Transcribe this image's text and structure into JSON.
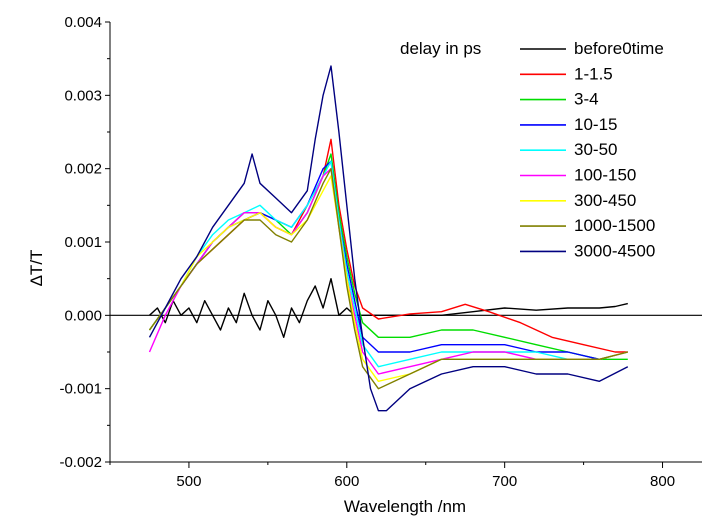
{
  "chart_data": {
    "type": "line",
    "xlabel": "Wavelength /nm",
    "ylabel": "ΔT/T",
    "xlim": [
      450,
      825
    ],
    "ylim": [
      -0.002,
      0.004
    ],
    "x_ticks": [
      500,
      600,
      700,
      800
    ],
    "x_tick_labels": [
      "500",
      "600",
      "700",
      "800"
    ],
    "y_ticks": [
      -0.002,
      -0.001,
      0.0,
      0.001,
      0.002,
      0.003,
      0.004
    ],
    "y_tick_labels": [
      "-0.002",
      "-0.001",
      "0.000",
      "0.001",
      "0.002",
      "0.003",
      "0.004"
    ],
    "grid": false,
    "zero_line": true,
    "legend_title": "delay in ps",
    "legend_position": "top-right",
    "series": [
      {
        "name": "before0time",
        "color": "#000000",
        "points": [
          [
            475,
            0.0
          ],
          [
            480,
            0.0001
          ],
          [
            485,
            -0.0001
          ],
          [
            490,
            0.0002
          ],
          [
            495,
            0.0
          ],
          [
            500,
            0.0001
          ],
          [
            505,
            -0.0001
          ],
          [
            510,
            0.0002
          ],
          [
            515,
            0.0
          ],
          [
            520,
            -0.0002
          ],
          [
            525,
            0.0001
          ],
          [
            530,
            -0.0001
          ],
          [
            535,
            0.0003
          ],
          [
            540,
            0.0
          ],
          [
            545,
            -0.0002
          ],
          [
            550,
            0.0002
          ],
          [
            555,
            0.0
          ],
          [
            560,
            -0.0003
          ],
          [
            565,
            0.0001
          ],
          [
            570,
            -0.0001
          ],
          [
            575,
            0.0002
          ],
          [
            580,
            0.0004
          ],
          [
            585,
            0.0001
          ],
          [
            590,
            0.0005
          ],
          [
            595,
            0.0
          ],
          [
            600,
            0.0001
          ],
          [
            605,
            0.0
          ],
          [
            610,
            0.0
          ],
          [
            620,
            0.0
          ],
          [
            640,
            0.0
          ],
          [
            660,
            0.0
          ],
          [
            680,
            5e-05
          ],
          [
            700,
            0.0001
          ],
          [
            720,
            7e-05
          ],
          [
            740,
            0.0001
          ],
          [
            760,
            0.0001
          ],
          [
            770,
            0.00012
          ],
          [
            778,
            0.00016
          ]
        ]
      },
      {
        "name": "1-1.5",
        "color": "#ff0000",
        "points": [
          [
            475,
            -0.0002
          ],
          [
            485,
            0.0001
          ],
          [
            495,
            0.0004
          ],
          [
            505,
            0.0007
          ],
          [
            515,
            0.0009
          ],
          [
            525,
            0.0011
          ],
          [
            535,
            0.0013
          ],
          [
            545,
            0.0014
          ],
          [
            555,
            0.0012
          ],
          [
            565,
            0.0011
          ],
          [
            575,
            0.0015
          ],
          [
            585,
            0.0019
          ],
          [
            590,
            0.0024
          ],
          [
            595,
            0.0015
          ],
          [
            600,
            0.0009
          ],
          [
            605,
            0.0004
          ],
          [
            610,
            0.0001
          ],
          [
            620,
            -5e-05
          ],
          [
            640,
            2e-05
          ],
          [
            660,
            5e-05
          ],
          [
            675,
            0.00015
          ],
          [
            690,
            5e-05
          ],
          [
            710,
            -0.0001
          ],
          [
            730,
            -0.0003
          ],
          [
            750,
            -0.0004
          ],
          [
            770,
            -0.0005
          ],
          [
            778,
            -0.0005
          ]
        ]
      },
      {
        "name": "3-4",
        "color": "#00dd00",
        "points": [
          [
            475,
            -0.0002
          ],
          [
            485,
            0.0001
          ],
          [
            495,
            0.0004
          ],
          [
            505,
            0.0007
          ],
          [
            515,
            0.001
          ],
          [
            525,
            0.0012
          ],
          [
            535,
            0.0014
          ],
          [
            545,
            0.0014
          ],
          [
            555,
            0.0013
          ],
          [
            565,
            0.0011
          ],
          [
            575,
            0.0014
          ],
          [
            585,
            0.0019
          ],
          [
            590,
            0.0022
          ],
          [
            595,
            0.0014
          ],
          [
            600,
            0.0008
          ],
          [
            605,
            0.0003
          ],
          [
            610,
            -0.0001
          ],
          [
            620,
            -0.0003
          ],
          [
            640,
            -0.0003
          ],
          [
            660,
            -0.0002
          ],
          [
            680,
            -0.0002
          ],
          [
            700,
            -0.0003
          ],
          [
            720,
            -0.0004
          ],
          [
            740,
            -0.0005
          ],
          [
            760,
            -0.0006
          ],
          [
            778,
            -0.0006
          ]
        ]
      },
      {
        "name": "10-15",
        "color": "#0000ff",
        "points": [
          [
            475,
            -0.0002
          ],
          [
            485,
            0.0001
          ],
          [
            495,
            0.0004
          ],
          [
            505,
            0.0007
          ],
          [
            515,
            0.001
          ],
          [
            525,
            0.0012
          ],
          [
            535,
            0.0013
          ],
          [
            545,
            0.0014
          ],
          [
            555,
            0.0013
          ],
          [
            565,
            0.0012
          ],
          [
            575,
            0.0015
          ],
          [
            585,
            0.002
          ],
          [
            590,
            0.0021
          ],
          [
            595,
            0.0013
          ],
          [
            600,
            0.0007
          ],
          [
            605,
            0.0002
          ],
          [
            610,
            -0.0003
          ],
          [
            620,
            -0.0005
          ],
          [
            640,
            -0.0005
          ],
          [
            660,
            -0.0004
          ],
          [
            680,
            -0.0004
          ],
          [
            700,
            -0.0004
          ],
          [
            720,
            -0.0005
          ],
          [
            740,
            -0.0005
          ],
          [
            760,
            -0.0006
          ],
          [
            778,
            -0.0005
          ]
        ]
      },
      {
        "name": "30-50",
        "color": "#00ffff",
        "points": [
          [
            475,
            -0.0002
          ],
          [
            485,
            0.0001
          ],
          [
            495,
            0.0004
          ],
          [
            505,
            0.0008
          ],
          [
            515,
            0.0011
          ],
          [
            525,
            0.0013
          ],
          [
            535,
            0.0014
          ],
          [
            545,
            0.0015
          ],
          [
            555,
            0.0013
          ],
          [
            565,
            0.0012
          ],
          [
            575,
            0.0015
          ],
          [
            585,
            0.0019
          ],
          [
            590,
            0.0021
          ],
          [
            595,
            0.0013
          ],
          [
            600,
            0.0006
          ],
          [
            605,
            0.0001
          ],
          [
            610,
            -0.0004
          ],
          [
            620,
            -0.0007
          ],
          [
            640,
            -0.0006
          ],
          [
            660,
            -0.0005
          ],
          [
            680,
            -0.0005
          ],
          [
            700,
            -0.0005
          ],
          [
            720,
            -0.0005
          ],
          [
            740,
            -0.0006
          ],
          [
            760,
            -0.0006
          ],
          [
            778,
            -0.0005
          ]
        ]
      },
      {
        "name": "100-150",
        "color": "#ff00ff",
        "points": [
          [
            475,
            -0.0005
          ],
          [
            485,
            0.0
          ],
          [
            495,
            0.0004
          ],
          [
            505,
            0.0007
          ],
          [
            515,
            0.001
          ],
          [
            525,
            0.0012
          ],
          [
            535,
            0.0014
          ],
          [
            545,
            0.0014
          ],
          [
            555,
            0.0012
          ],
          [
            565,
            0.0011
          ],
          [
            575,
            0.0014
          ],
          [
            585,
            0.0019
          ],
          [
            590,
            0.002
          ],
          [
            595,
            0.0012
          ],
          [
            600,
            0.0005
          ],
          [
            605,
            0.0
          ],
          [
            610,
            -0.0005
          ],
          [
            620,
            -0.0008
          ],
          [
            640,
            -0.0007
          ],
          [
            660,
            -0.0006
          ],
          [
            680,
            -0.0005
          ],
          [
            700,
            -0.0005
          ],
          [
            720,
            -0.0006
          ],
          [
            740,
            -0.0006
          ],
          [
            760,
            -0.0006
          ],
          [
            778,
            -0.0005
          ]
        ]
      },
      {
        "name": "300-450",
        "color": "#ffff00",
        "points": [
          [
            475,
            -0.0002
          ],
          [
            485,
            0.0001
          ],
          [
            495,
            0.0004
          ],
          [
            505,
            0.0008
          ],
          [
            515,
            0.001
          ],
          [
            525,
            0.0012
          ],
          [
            535,
            0.0013
          ],
          [
            545,
            0.0014
          ],
          [
            555,
            0.0012
          ],
          [
            565,
            0.0011
          ],
          [
            575,
            0.0013
          ],
          [
            585,
            0.0017
          ],
          [
            590,
            0.0019
          ],
          [
            595,
            0.0012
          ],
          [
            600,
            0.0005
          ],
          [
            605,
            -0.0001
          ],
          [
            610,
            -0.0006
          ],
          [
            620,
            -0.0009
          ],
          [
            640,
            -0.0008
          ],
          [
            660,
            -0.0006
          ],
          [
            680,
            -0.0006
          ],
          [
            700,
            -0.0006
          ],
          [
            720,
            -0.0006
          ],
          [
            740,
            -0.0006
          ],
          [
            760,
            -0.0006
          ],
          [
            778,
            -0.0005
          ]
        ]
      },
      {
        "name": "1000-1500",
        "color": "#808000",
        "points": [
          [
            475,
            -0.0002
          ],
          [
            485,
            0.0001
          ],
          [
            495,
            0.0004
          ],
          [
            505,
            0.0007
          ],
          [
            515,
            0.0009
          ],
          [
            525,
            0.0011
          ],
          [
            535,
            0.0013
          ],
          [
            545,
            0.0013
          ],
          [
            555,
            0.0011
          ],
          [
            565,
            0.001
          ],
          [
            575,
            0.0013
          ],
          [
            585,
            0.0018
          ],
          [
            590,
            0.002
          ],
          [
            595,
            0.0012
          ],
          [
            600,
            0.0004
          ],
          [
            605,
            -0.0002
          ],
          [
            610,
            -0.0007
          ],
          [
            620,
            -0.001
          ],
          [
            640,
            -0.0008
          ],
          [
            660,
            -0.0006
          ],
          [
            680,
            -0.0006
          ],
          [
            700,
            -0.0006
          ],
          [
            720,
            -0.0006
          ],
          [
            740,
            -0.0006
          ],
          [
            760,
            -0.0006
          ],
          [
            778,
            -0.0005
          ]
        ]
      },
      {
        "name": "3000-4500",
        "color": "#000080",
        "points": [
          [
            475,
            -0.0003
          ],
          [
            485,
            0.0001
          ],
          [
            495,
            0.0005
          ],
          [
            505,
            0.0008
          ],
          [
            515,
            0.0012
          ],
          [
            525,
            0.0015
          ],
          [
            535,
            0.0018
          ],
          [
            540,
            0.0022
          ],
          [
            545,
            0.0018
          ],
          [
            555,
            0.0016
          ],
          [
            565,
            0.0014
          ],
          [
            575,
            0.0017
          ],
          [
            580,
            0.0024
          ],
          [
            585,
            0.003
          ],
          [
            590,
            0.0034
          ],
          [
            595,
            0.0025
          ],
          [
            600,
            0.0015
          ],
          [
            605,
            0.0005
          ],
          [
            610,
            -0.0003
          ],
          [
            615,
            -0.001
          ],
          [
            620,
            -0.0013
          ],
          [
            625,
            -0.0013
          ],
          [
            640,
            -0.001
          ],
          [
            660,
            -0.0008
          ],
          [
            680,
            -0.0007
          ],
          [
            700,
            -0.0007
          ],
          [
            720,
            -0.0008
          ],
          [
            740,
            -0.0008
          ],
          [
            760,
            -0.0009
          ],
          [
            778,
            -0.0007
          ]
        ]
      }
    ]
  }
}
